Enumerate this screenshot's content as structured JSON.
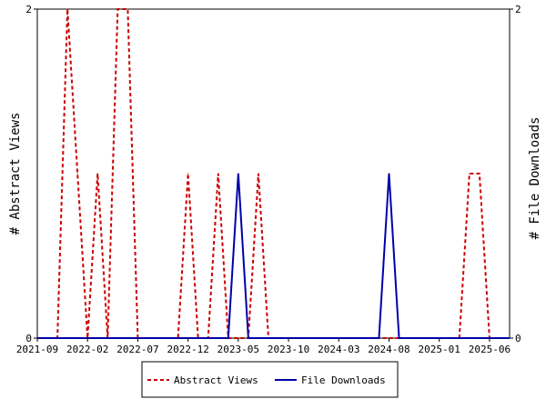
{
  "chart_data": {
    "type": "line",
    "x": [
      "2021-09",
      "2021-10",
      "2021-11",
      "2021-12",
      "2022-01",
      "2022-02",
      "2022-03",
      "2022-04",
      "2022-05",
      "2022-06",
      "2022-07",
      "2022-08",
      "2022-09",
      "2022-10",
      "2022-11",
      "2022-12",
      "2023-01",
      "2023-02",
      "2023-03",
      "2023-04",
      "2023-05",
      "2023-06",
      "2023-07",
      "2023-08",
      "2023-09",
      "2023-10",
      "2023-11",
      "2023-12",
      "2024-01",
      "2024-02",
      "2024-03",
      "2024-04",
      "2024-05",
      "2024-06",
      "2024-07",
      "2024-08",
      "2024-09",
      "2024-10",
      "2024-11",
      "2024-12",
      "2025-01",
      "2025-02",
      "2025-03",
      "2025-04",
      "2025-05",
      "2025-06",
      "2025-07",
      "2025-08"
    ],
    "x_ticks": [
      "2021-09",
      "2022-02",
      "2022-07",
      "2022-12",
      "2023-05",
      "2023-10",
      "2024-03",
      "2024-08",
      "2025-01",
      "2025-06"
    ],
    "series": [
      {
        "name": "Abstract Views",
        "color": "#cc0000",
        "style": "dashed",
        "values": [
          0,
          0,
          0,
          2,
          1,
          0,
          1,
          0,
          2,
          2,
          0,
          0,
          0,
          0,
          0,
          1,
          0,
          0,
          1,
          0,
          0,
          0,
          1,
          0,
          0,
          0,
          0,
          0,
          0,
          0,
          0,
          0,
          0,
          0,
          0,
          0,
          0,
          0,
          0,
          0,
          0,
          0,
          0,
          1,
          1,
          0,
          0,
          0
        ]
      },
      {
        "name": "File Downloads",
        "color": "#0000aa",
        "style": "solid",
        "values": [
          0,
          0,
          0,
          0,
          0,
          0,
          0,
          0,
          0,
          0,
          0,
          0,
          0,
          0,
          0,
          0,
          0,
          0,
          0,
          0,
          1,
          0,
          0,
          0,
          0,
          0,
          0,
          0,
          0,
          0,
          0,
          0,
          0,
          0,
          0,
          1,
          0,
          0,
          0,
          0,
          0,
          0,
          0,
          0,
          0,
          0,
          0,
          0
        ]
      }
    ],
    "ylabel_left": "# Abstract Views",
    "ylabel_right": "# File Downloads",
    "ylim_left": [
      0,
      2
    ],
    "ylim_right": [
      0,
      2
    ],
    "y_ticks_left": [
      "0",
      "2"
    ],
    "y_ticks_right": [
      "0",
      "2"
    ],
    "legend_placement": "bottom-center",
    "grid": false
  }
}
